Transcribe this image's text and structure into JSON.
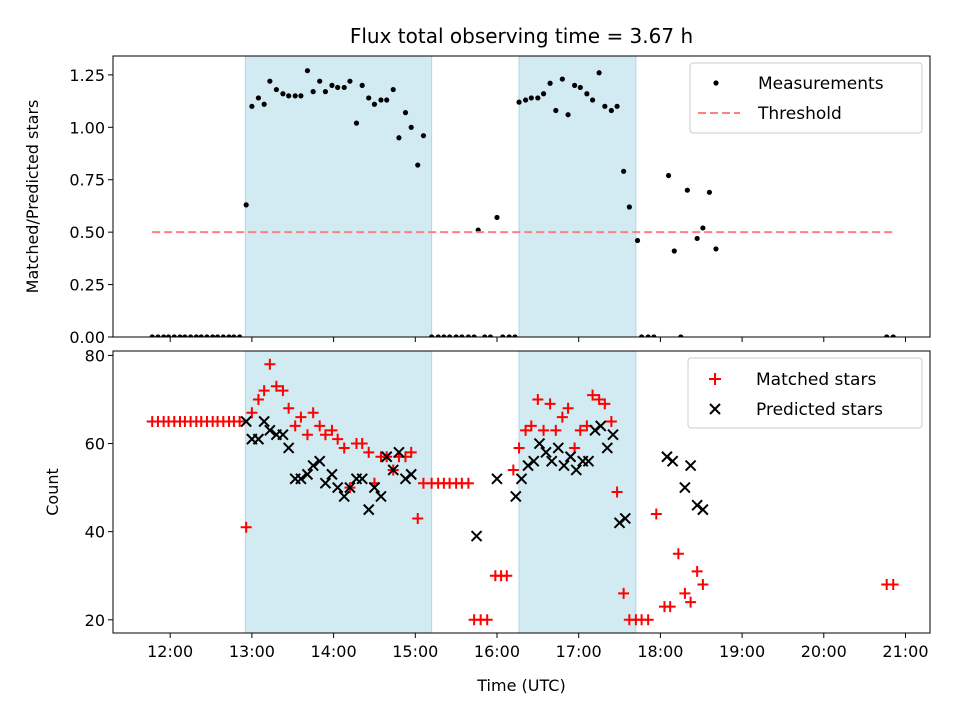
{
  "figure": {
    "title": "Flux total observing time = 3.67 h"
  },
  "colors": {
    "shade": "#add8e6",
    "measurement": "#000000",
    "threshold": "#ff7f7f",
    "matched": "#ff0000",
    "predicted": "#000000"
  },
  "chart_data": [
    {
      "type": "scatter",
      "ylabel": "Matched/Predicted stars",
      "xlabel": "",
      "xlim": [
        11.3,
        21.3
      ],
      "ylim": [
        0.0,
        1.34
      ],
      "yticks": [
        0.0,
        0.25,
        0.5,
        0.75,
        1.0,
        1.25
      ],
      "ytick_labels": [
        "0.00",
        "0.25",
        "0.50",
        "0.75",
        "1.00",
        "1.25"
      ],
      "shaded_spans": [
        [
          12.92,
          15.2
        ],
        [
          16.27,
          17.7
        ]
      ],
      "legend_position": "upper right",
      "series": [
        {
          "name": "Measurements",
          "marker": "dot",
          "points": [
            [
              11.78,
              0
            ],
            [
              11.85,
              0
            ],
            [
              11.92,
              0
            ],
            [
              11.98,
              0
            ],
            [
              12.05,
              0
            ],
            [
              12.12,
              0
            ],
            [
              12.18,
              0
            ],
            [
              12.25,
              0
            ],
            [
              12.32,
              0
            ],
            [
              12.38,
              0
            ],
            [
              12.45,
              0
            ],
            [
              12.52,
              0
            ],
            [
              12.58,
              0
            ],
            [
              12.65,
              0
            ],
            [
              12.72,
              0
            ],
            [
              12.78,
              0
            ],
            [
              12.85,
              0
            ],
            [
              12.93,
              0.63
            ],
            [
              13.0,
              1.1
            ],
            [
              13.08,
              1.14
            ],
            [
              13.15,
              1.11
            ],
            [
              13.22,
              1.22
            ],
            [
              13.3,
              1.18
            ],
            [
              13.38,
              1.16
            ],
            [
              13.45,
              1.15
            ],
            [
              13.53,
              1.15
            ],
            [
              13.6,
              1.15
            ],
            [
              13.68,
              1.27
            ],
            [
              13.75,
              1.17
            ],
            [
              13.83,
              1.22
            ],
            [
              13.9,
              1.17
            ],
            [
              13.98,
              1.2
            ],
            [
              14.05,
              1.19
            ],
            [
              14.13,
              1.19
            ],
            [
              14.2,
              1.22
            ],
            [
              14.28,
              1.02
            ],
            [
              14.35,
              1.2
            ],
            [
              14.43,
              1.14
            ],
            [
              14.5,
              1.11
            ],
            [
              14.58,
              1.13
            ],
            [
              14.65,
              1.13
            ],
            [
              14.73,
              1.18
            ],
            [
              14.8,
              0.95
            ],
            [
              14.88,
              1.07
            ],
            [
              14.95,
              1.0
            ],
            [
              15.03,
              0.82
            ],
            [
              15.1,
              0.96
            ],
            [
              15.2,
              0
            ],
            [
              15.28,
              0
            ],
            [
              15.35,
              0
            ],
            [
              15.42,
              0
            ],
            [
              15.5,
              0
            ],
            [
              15.57,
              0
            ],
            [
              15.65,
              0
            ],
            [
              15.72,
              0
            ],
            [
              15.77,
              0.51
            ],
            [
              15.85,
              0
            ],
            [
              15.92,
              0
            ],
            [
              16.0,
              0.57
            ],
            [
              16.07,
              0
            ],
            [
              16.15,
              0
            ],
            [
              16.22,
              0
            ],
            [
              16.27,
              1.12
            ],
            [
              16.35,
              1.13
            ],
            [
              16.42,
              1.14
            ],
            [
              16.5,
              1.14
            ],
            [
              16.57,
              1.16
            ],
            [
              16.65,
              1.21
            ],
            [
              16.72,
              1.08
            ],
            [
              16.8,
              1.23
            ],
            [
              16.87,
              1.06
            ],
            [
              16.95,
              1.2
            ],
            [
              17.02,
              1.19
            ],
            [
              17.1,
              1.16
            ],
            [
              17.17,
              1.13
            ],
            [
              17.25,
              1.26
            ],
            [
              17.32,
              1.1
            ],
            [
              17.4,
              1.08
            ],
            [
              17.47,
              1.1
            ],
            [
              17.55,
              0.79
            ],
            [
              17.62,
              0.62
            ],
            [
              17.72,
              0.46
            ],
            [
              17.77,
              0
            ],
            [
              17.85,
              0
            ],
            [
              17.92,
              0
            ],
            [
              18.1,
              0.77
            ],
            [
              18.17,
              0.41
            ],
            [
              18.25,
              0
            ],
            [
              18.33,
              0.7
            ],
            [
              18.45,
              0.47
            ],
            [
              18.52,
              0.52
            ],
            [
              18.6,
              0.69
            ],
            [
              18.68,
              0.42
            ],
            [
              20.77,
              0
            ],
            [
              20.85,
              0
            ]
          ]
        },
        {
          "name": "Threshold",
          "style": "dashed",
          "x": [
            11.78,
            20.85
          ],
          "y": [
            0.5,
            0.5
          ]
        }
      ]
    },
    {
      "type": "scatter",
      "xlabel": "Time (UTC)",
      "ylabel": "Count",
      "xlim": [
        11.3,
        21.3
      ],
      "ylim": [
        17,
        81
      ],
      "yticks": [
        20,
        40,
        60,
        80
      ],
      "ytick_labels": [
        "20",
        "40",
        "60",
        "80"
      ],
      "xticks": [
        12,
        13,
        14,
        15,
        16,
        17,
        18,
        19,
        20,
        21
      ],
      "xtick_labels": [
        "12:00",
        "13:00",
        "14:00",
        "15:00",
        "16:00",
        "17:00",
        "18:00",
        "19:00",
        "20:00",
        "21:00"
      ],
      "shaded_spans": [
        [
          12.92,
          15.2
        ],
        [
          16.27,
          17.7
        ]
      ],
      "legend_position": "upper right",
      "series": [
        {
          "name": "Matched stars",
          "marker": "plus",
          "points": [
            [
              11.78,
              65
            ],
            [
              11.85,
              65
            ],
            [
              11.92,
              65
            ],
            [
              11.98,
              65
            ],
            [
              12.05,
              65
            ],
            [
              12.12,
              65
            ],
            [
              12.18,
              65
            ],
            [
              12.25,
              65
            ],
            [
              12.32,
              65
            ],
            [
              12.38,
              65
            ],
            [
              12.45,
              65
            ],
            [
              12.52,
              65
            ],
            [
              12.58,
              65
            ],
            [
              12.65,
              65
            ],
            [
              12.72,
              65
            ],
            [
              12.78,
              65
            ],
            [
              12.85,
              65
            ],
            [
              12.93,
              41
            ],
            [
              13.0,
              67
            ],
            [
              13.08,
              70
            ],
            [
              13.15,
              72
            ],
            [
              13.22,
              78
            ],
            [
              13.3,
              73
            ],
            [
              13.38,
              72
            ],
            [
              13.45,
              68
            ],
            [
              13.53,
              64
            ],
            [
              13.6,
              66
            ],
            [
              13.68,
              62
            ],
            [
              13.75,
              67
            ],
            [
              13.83,
              64
            ],
            [
              13.9,
              62
            ],
            [
              13.98,
              63
            ],
            [
              14.05,
              61
            ],
            [
              14.13,
              59
            ],
            [
              14.2,
              50
            ],
            [
              14.28,
              60
            ],
            [
              14.35,
              60
            ],
            [
              14.43,
              58
            ],
            [
              14.5,
              51
            ],
            [
              14.58,
              57
            ],
            [
              14.65,
              57
            ],
            [
              14.73,
              54
            ],
            [
              14.8,
              57
            ],
            [
              14.88,
              57
            ],
            [
              14.95,
              58
            ],
            [
              15.03,
              43
            ],
            [
              15.1,
              51
            ],
            [
              15.2,
              51
            ],
            [
              15.28,
              51
            ],
            [
              15.35,
              51
            ],
            [
              15.42,
              51
            ],
            [
              15.5,
              51
            ],
            [
              15.57,
              51
            ],
            [
              15.65,
              51
            ],
            [
              15.72,
              20
            ],
            [
              15.8,
              20
            ],
            [
              15.88,
              20
            ],
            [
              15.98,
              30
            ],
            [
              16.05,
              30
            ],
            [
              16.12,
              30
            ],
            [
              16.2,
              54
            ],
            [
              16.27,
              59
            ],
            [
              16.35,
              63
            ],
            [
              16.42,
              64
            ],
            [
              16.5,
              70
            ],
            [
              16.57,
              63
            ],
            [
              16.65,
              69
            ],
            [
              16.72,
              63
            ],
            [
              16.8,
              66
            ],
            [
              16.87,
              68
            ],
            [
              16.95,
              59
            ],
            [
              17.02,
              63
            ],
            [
              17.1,
              64
            ],
            [
              17.17,
              71
            ],
            [
              17.25,
              70
            ],
            [
              17.32,
              69
            ],
            [
              17.4,
              65
            ],
            [
              17.47,
              49
            ],
            [
              17.55,
              26
            ],
            [
              17.62,
              20
            ],
            [
              17.7,
              20
            ],
            [
              17.77,
              20
            ],
            [
              17.85,
              20
            ],
            [
              17.95,
              44
            ],
            [
              18.05,
              23
            ],
            [
              18.12,
              23
            ],
            [
              18.22,
              35
            ],
            [
              18.3,
              26
            ],
            [
              18.37,
              24
            ],
            [
              18.45,
              31
            ],
            [
              18.52,
              28
            ],
            [
              20.77,
              28
            ],
            [
              20.85,
              28
            ]
          ]
        },
        {
          "name": "Predicted stars",
          "marker": "x",
          "points": [
            [
              12.93,
              65
            ],
            [
              13.0,
              61
            ],
            [
              13.08,
              61
            ],
            [
              13.15,
              65
            ],
            [
              13.22,
              63
            ],
            [
              13.3,
              62
            ],
            [
              13.38,
              62
            ],
            [
              13.45,
              59
            ],
            [
              13.53,
              52
            ],
            [
              13.6,
              52
            ],
            [
              13.68,
              53
            ],
            [
              13.75,
              55
            ],
            [
              13.83,
              56
            ],
            [
              13.9,
              51
            ],
            [
              13.98,
              53
            ],
            [
              14.05,
              50
            ],
            [
              14.13,
              48
            ],
            [
              14.2,
              50
            ],
            [
              14.28,
              52
            ],
            [
              14.35,
              52
            ],
            [
              14.43,
              45
            ],
            [
              14.5,
              50
            ],
            [
              14.58,
              48
            ],
            [
              14.65,
              57
            ],
            [
              14.73,
              54
            ],
            [
              14.8,
              58
            ],
            [
              14.88,
              52
            ],
            [
              14.95,
              53
            ],
            [
              15.75,
              39
            ],
            [
              16.0,
              52
            ],
            [
              16.23,
              48
            ],
            [
              16.3,
              52
            ],
            [
              16.38,
              55
            ],
            [
              16.45,
              56
            ],
            [
              16.52,
              60
            ],
            [
              16.6,
              58
            ],
            [
              16.67,
              56
            ],
            [
              16.75,
              59
            ],
            [
              16.82,
              55
            ],
            [
              16.9,
              57
            ],
            [
              16.97,
              54
            ],
            [
              17.05,
              56
            ],
            [
              17.12,
              56
            ],
            [
              17.2,
              63
            ],
            [
              17.27,
              64
            ],
            [
              17.35,
              59
            ],
            [
              17.42,
              62
            ],
            [
              17.5,
              42
            ],
            [
              17.57,
              43
            ],
            [
              18.08,
              57
            ],
            [
              18.15,
              56
            ],
            [
              18.3,
              50
            ],
            [
              18.37,
              55
            ],
            [
              18.45,
              46
            ],
            [
              18.52,
              45
            ]
          ]
        }
      ]
    }
  ]
}
